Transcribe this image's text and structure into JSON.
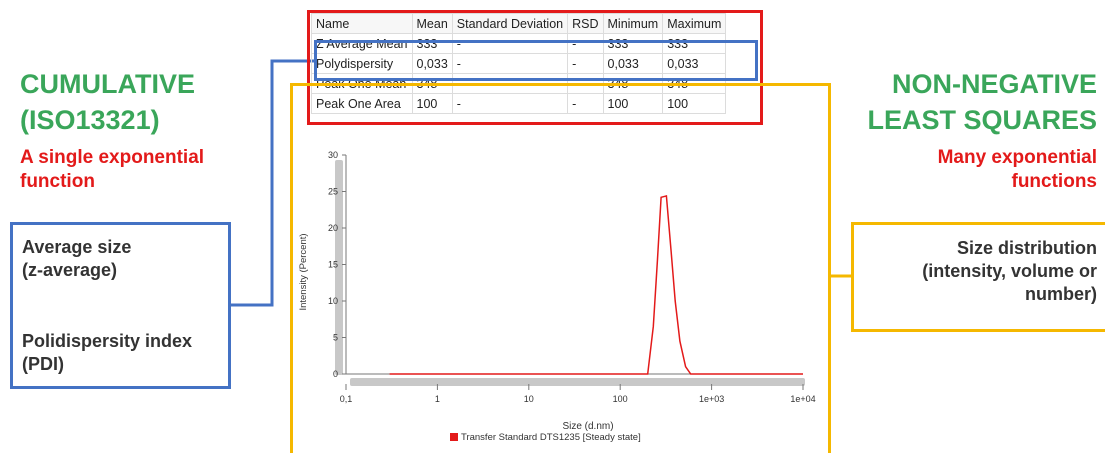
{
  "left": {
    "title_line1": "CUMULATIVE",
    "title_line2": "(ISO13321)",
    "subtitle_line1": "A single exponential",
    "subtitle_line2": "function",
    "box_line1": "Average size",
    "box_line2": "(z-average)",
    "box_line3": "Polidispersity index",
    "box_line4": "(PDI)"
  },
  "right": {
    "title_line1": "NON-NEGATIVE",
    "title_line2": "LEAST SQUARES",
    "subtitle_line1": "Many exponential",
    "subtitle_line2": "functions",
    "box_line1": "Size distribution",
    "box_line2": "(intensity, volume or",
    "box_line3": "number)"
  },
  "table": {
    "headers": [
      "Name",
      "Mean",
      "Standard Deviation",
      "RSD",
      "Minimum",
      "Maximum"
    ],
    "rows": [
      [
        "Z Average Mean",
        "333",
        "-",
        "-",
        "333",
        "333"
      ],
      [
        "Polydispersity",
        "0,033",
        "-",
        "-",
        "0,033",
        "0,033"
      ],
      [
        "Peak One Mean",
        "348",
        "-",
        "-",
        "348",
        "348"
      ],
      [
        "Peak One Area",
        "100",
        "-",
        "-",
        "100",
        "100"
      ]
    ]
  },
  "colors": {
    "green": "#3aa65a",
    "red": "#e31a1a",
    "blue": "#4472c4",
    "amber": "#f5b800"
  },
  "chart_data": {
    "type": "line",
    "xscale": "log",
    "xlim": [
      0.1,
      10000
    ],
    "ylim": [
      0,
      30
    ],
    "xticks": [
      0.1,
      1,
      10,
      100,
      1000,
      10000
    ],
    "xtick_labels": [
      "0,1",
      "1",
      "10",
      "100",
      "1e+03",
      "1e+04"
    ],
    "yticks": [
      0,
      5,
      10,
      15,
      20,
      25,
      30
    ],
    "ytick_labels": [
      "0",
      "5",
      "10",
      "15",
      "20",
      "25",
      "30"
    ],
    "xlabel": "Size (d.nm)",
    "ylabel": "Intensity (Percent)",
    "series": [
      {
        "name": "Transfer Standard DTS1235 [Steady state]",
        "color": "#e31a1a",
        "x": [
          0.3,
          200,
          230,
          255,
          280,
          320,
          360,
          400,
          450,
          520,
          590,
          700,
          10000
        ],
        "y": [
          0,
          0,
          6.5,
          15.5,
          24.2,
          24.4,
          17,
          10,
          4.5,
          1,
          0,
          0,
          0
        ]
      }
    ]
  }
}
